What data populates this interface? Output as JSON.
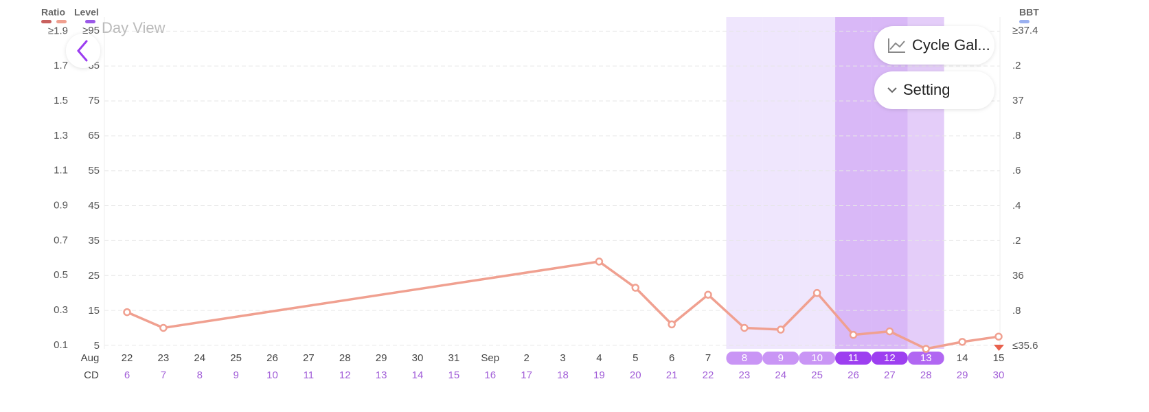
{
  "title": "Day View",
  "buttons": [
    "Cycle Gal...",
    "Setting"
  ],
  "chart_data": {
    "type": "line",
    "level_label": "Level",
    "bbt_label": "BBT",
    "month_label": "Aug",
    "cd_label": "CD",
    "ratio_colors": [
      "#c8605e",
      "#f0a090"
    ],
    "level_color": "#9b59e8",
    "bbt_color": "#9ab0f0",
    "categories": [
      "22",
      "23",
      "24",
      "25",
      "26",
      "27",
      "28",
      "29",
      "30",
      "31",
      "Sep",
      "2",
      "3",
      "4",
      "5",
      "6",
      "7",
      "8",
      "9",
      "10",
      "11",
      "12",
      "13",
      "14",
      "15"
    ],
    "cycle_days": [
      6,
      7,
      8,
      9,
      10,
      11,
      12,
      13,
      14,
      15,
      16,
      17,
      18,
      19,
      20,
      21,
      22,
      23,
      24,
      25,
      26,
      27,
      28,
      29,
      30
    ],
    "series": [
      {
        "name": "Ratio",
        "color": "#f0a090",
        "values": [
          0.29,
          0.2,
          null,
          null,
          null,
          null,
          null,
          null,
          null,
          null,
          null,
          null,
          null,
          0.58,
          0.43,
          0.22,
          0.39,
          0.2,
          0.19,
          0.4,
          0.16,
          0.18,
          0.08,
          0.12,
          0.15
        ]
      }
    ],
    "band_colors": [
      null,
      null,
      null,
      null,
      null,
      null,
      null,
      null,
      null,
      null,
      null,
      null,
      null,
      null,
      null,
      null,
      null,
      "#efe6fd",
      "#efe6fd",
      "#efe6fd",
      "#d9b8f7",
      "#d9b8f7",
      "#e4cdf9",
      null,
      null
    ],
    "pill_colors": [
      null,
      null,
      null,
      null,
      null,
      null,
      null,
      null,
      null,
      null,
      null,
      null,
      null,
      null,
      null,
      null,
      null,
      "#c995f5",
      "#c995f5",
      "#c995f5",
      "#9d3ff0",
      "#9d3ff0",
      "#b167f2",
      null,
      null
    ],
    "ylim": [
      0.08,
      1.98
    ],
    "yticks": [
      {
        "value": 1.9,
        "label": "≥1.9"
      },
      1.7,
      1.5,
      1.3,
      1.1,
      0.9,
      0.7,
      0.5,
      0.3,
      0.1
    ],
    "level_lim": [
      4.2,
      98.9
    ],
    "level_ticks": [
      {
        "value": 95,
        "label": "≥95"
      },
      85,
      75,
      65,
      55,
      45,
      35,
      25,
      15,
      5
    ],
    "y2lim": [
      35.584,
      37.478
    ],
    "y2ticks": [
      {
        "value": 37.4,
        "label": "≥37.4"
      },
      {
        "value": 37.2,
        "label": ".2"
      },
      37,
      {
        "value": 36.8,
        "label": ".8"
      },
      {
        "value": 36.6,
        "label": ".6"
      },
      {
        "value": 36.4,
        "label": ".4"
      },
      {
        "value": 36.2,
        "label": ".2"
      },
      36,
      {
        "value": 35.8,
        "label": ".8"
      },
      {
        "value": 35.6,
        "label": "≤35.6"
      }
    ],
    "grid": true
  }
}
